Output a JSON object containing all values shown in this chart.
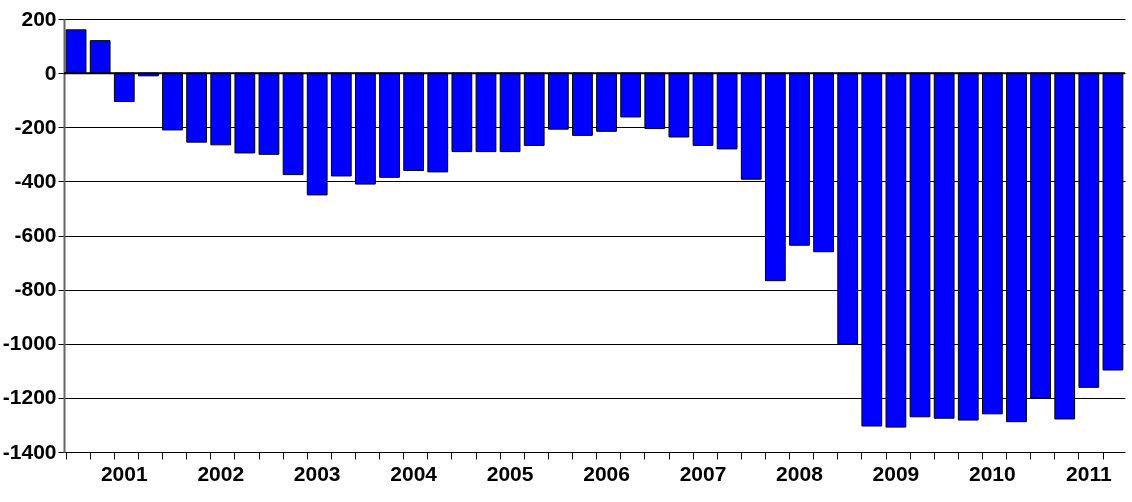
{
  "chart_data": {
    "type": "bar",
    "categories": [
      null,
      null,
      "2001",
      null,
      null,
      null,
      "2002",
      null,
      null,
      null,
      "2003",
      null,
      null,
      null,
      "2004",
      null,
      null,
      null,
      "2005",
      null,
      null,
      null,
      "2006",
      null,
      null,
      null,
      "2007",
      null,
      null,
      null,
      "2008",
      null,
      null,
      null,
      "2009",
      null,
      null,
      null,
      "2010",
      null,
      null,
      null,
      "2011",
      null
    ],
    "series": [
      {
        "color": "#0000ff",
        "values": [
          160,
          120,
          -105,
          -10,
          -210,
          -255,
          -265,
          -295,
          -300,
          -375,
          -450,
          -380,
          -410,
          -385,
          -360,
          -365,
          -290,
          -290,
          -290,
          -267,
          -207,
          -230,
          -215,
          -162,
          -205,
          -236,
          -267,
          -280,
          -392,
          -767,
          -636,
          -660,
          -1000,
          -1304,
          -1308,
          -1270,
          -1275,
          -1282,
          -1259,
          -1288,
          -1201,
          -1278,
          -1161,
          -1097
        ]
      }
    ],
    "ylim": [
      -1400,
      200
    ],
    "yticks": [
      -1400,
      -1200,
      -1000,
      -800,
      -600,
      -400,
      -200,
      0,
      200
    ],
    "grid": "y",
    "legend": false,
    "ref_lines": [
      {
        "axis": "y",
        "value": 0,
        "color": "#000000"
      }
    ]
  }
}
